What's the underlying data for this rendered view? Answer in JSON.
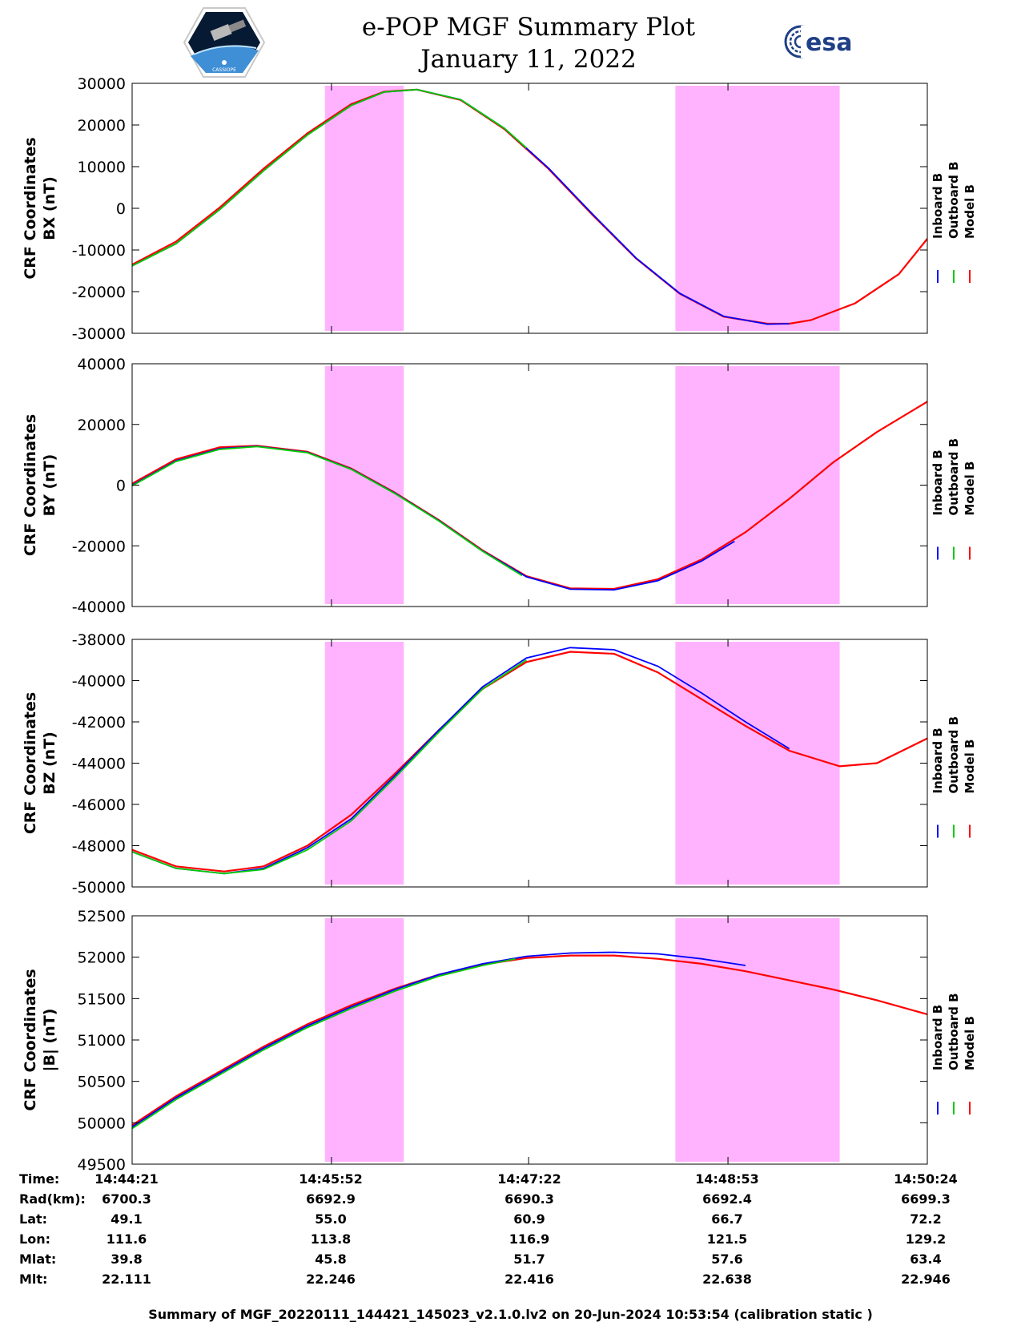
{
  "header": {
    "title": "e-POP MGF Summary Plot",
    "date": "January 11, 2022",
    "left_logo": "CASSIOPE",
    "right_logo": "esa"
  },
  "colors": {
    "inboard": "#0000ff",
    "outboard": "#00cc00",
    "model": "#ff0000",
    "highlight": "#ffb3ff"
  },
  "chart_data": [
    {
      "type": "line",
      "title": "BX",
      "ylabel_line1": "CRF Coordinates",
      "ylabel_line2": "BX (nT)",
      "ylim": [
        -30000,
        30000
      ],
      "yticks": [
        30000,
        20000,
        10000,
        0,
        -10000,
        -20000,
        -30000
      ],
      "xlim": [
        0,
        363
      ],
      "xticks": [
        0,
        91,
        181,
        272,
        363
      ],
      "highlight_spans": [
        [
          88,
          124
        ],
        [
          248,
          323
        ]
      ],
      "legend": [
        "Inboard B",
        "Outboard B",
        "Model B"
      ],
      "series": [
        {
          "name": "Model B",
          "x": [
            0,
            20,
            40,
            60,
            80,
            100,
            115,
            130,
            150,
            170,
            190,
            210,
            230,
            250,
            270,
            290,
            300,
            310,
            330,
            350,
            363
          ],
          "y": [
            -13500,
            -8000,
            200,
            9500,
            18000,
            25000,
            28000,
            28500,
            26000,
            19000,
            9500,
            -1500,
            -12000,
            -20500,
            -26000,
            -27700,
            -27700,
            -26800,
            -22800,
            -15800,
            -7300
          ]
        },
        {
          "name": "Inboard B",
          "x": [
            0,
            20,
            40,
            60,
            80,
            100,
            115,
            130,
            150,
            170,
            190,
            210,
            230,
            250,
            270,
            290,
            300
          ],
          "y": [
            -13800,
            -8500,
            -300,
            9000,
            17600,
            24700,
            27900,
            28500,
            26100,
            19200,
            9700,
            -1300,
            -11900,
            -20400,
            -25900,
            -27800,
            -27700
          ]
        },
        {
          "name": "Outboard B",
          "x": [
            0,
            20,
            40,
            60,
            80,
            100,
            115,
            130,
            150,
            170,
            180
          ],
          "y": [
            -13800,
            -8500,
            -300,
            9000,
            17600,
            24700,
            27900,
            28500,
            26100,
            19200,
            14500
          ]
        }
      ]
    },
    {
      "type": "line",
      "title": "BY",
      "ylabel_line1": "CRF Coordinates",
      "ylabel_line2": "BY (nT)",
      "ylim": [
        -40000,
        40000
      ],
      "yticks": [
        40000,
        20000,
        0,
        -20000,
        -40000
      ],
      "xlim": [
        0,
        363
      ],
      "xticks": [
        0,
        91,
        181,
        272,
        363
      ],
      "highlight_spans": [
        [
          88,
          124
        ],
        [
          248,
          323
        ]
      ],
      "legend": [
        "Inboard B",
        "Outboard B",
        "Model B"
      ],
      "series": [
        {
          "name": "Model B",
          "x": [
            0,
            20,
            40,
            57,
            80,
            100,
            120,
            140,
            160,
            180,
            200,
            220,
            240,
            260,
            280,
            300,
            320,
            340,
            363
          ],
          "y": [
            500,
            8500,
            12500,
            13000,
            11000,
            5500,
            -2500,
            -11500,
            -21500,
            -30000,
            -34000,
            -34200,
            -31000,
            -24500,
            -15500,
            -4500,
            7500,
            17500,
            27500
          ]
        },
        {
          "name": "Inboard B",
          "x": [
            0,
            20,
            40,
            57,
            80,
            100,
            120,
            140,
            160,
            180,
            200,
            220,
            240,
            260,
            275
          ],
          "y": [
            0,
            8000,
            12000,
            12800,
            10800,
            5300,
            -2700,
            -11700,
            -21700,
            -30200,
            -34300,
            -34500,
            -31500,
            -25000,
            -18500
          ]
        },
        {
          "name": "Outboard B",
          "x": [
            0,
            20,
            40,
            57,
            80,
            100,
            120,
            140,
            160,
            178
          ],
          "y": [
            -200,
            7800,
            11800,
            12700,
            10700,
            5200,
            -2800,
            -11800,
            -21800,
            -29800
          ]
        }
      ]
    },
    {
      "type": "line",
      "title": "BZ",
      "ylabel_line1": "CRF Coordinates",
      "ylabel_line2": "BZ (nT)",
      "ylim": [
        -50000,
        -38000
      ],
      "yticks": [
        -38000,
        -40000,
        -42000,
        -44000,
        -46000,
        -48000,
        -50000
      ],
      "xlim": [
        0,
        363
      ],
      "xticks": [
        0,
        91,
        181,
        272,
        363
      ],
      "highlight_spans": [
        [
          88,
          124
        ],
        [
          248,
          323
        ]
      ],
      "legend": [
        "Inboard B",
        "Outboard B",
        "Model B"
      ],
      "series": [
        {
          "name": "Model B",
          "x": [
            0,
            20,
            42,
            60,
            80,
            100,
            120,
            140,
            160,
            180,
            200,
            220,
            240,
            260,
            280,
            300,
            323,
            340,
            363
          ],
          "y": [
            -48200,
            -49000,
            -49250,
            -49000,
            -48000,
            -46500,
            -44500,
            -42400,
            -40400,
            -39100,
            -38600,
            -38700,
            -39600,
            -40900,
            -42200,
            -43400,
            -44150,
            -44000,
            -42800
          ]
        },
        {
          "name": "Inboard B",
          "x": [
            0,
            20,
            42,
            60,
            80,
            100,
            120,
            140,
            160,
            180,
            200,
            220,
            240,
            260,
            280,
            300
          ],
          "y": [
            -48300,
            -49100,
            -49350,
            -49100,
            -48100,
            -46700,
            -44600,
            -42400,
            -40300,
            -38900,
            -38400,
            -38500,
            -39300,
            -40600,
            -42000,
            -43300
          ]
        },
        {
          "name": "Outboard B",
          "x": [
            0,
            20,
            42,
            60,
            80,
            100,
            120,
            140,
            160,
            180
          ],
          "y": [
            -48300,
            -49100,
            -49350,
            -49150,
            -48200,
            -46800,
            -44700,
            -42500,
            -40400,
            -39000
          ]
        }
      ]
    },
    {
      "type": "line",
      "title": "|B|",
      "ylabel_line1": "CRF Coordinates",
      "ylabel_line2": "|B| (nT)",
      "ylim": [
        49500,
        52500
      ],
      "yticks": [
        52500,
        52000,
        51500,
        51000,
        50500,
        50000,
        49500
      ],
      "xlim": [
        0,
        363
      ],
      "xticks": [
        0,
        91,
        181,
        272,
        363
      ],
      "highlight_spans": [
        [
          88,
          124
        ],
        [
          248,
          323
        ]
      ],
      "legend": [
        "Inboard B",
        "Outboard B",
        "Model B"
      ],
      "series": [
        {
          "name": "Model B",
          "x": [
            0,
            20,
            40,
            60,
            80,
            100,
            120,
            140,
            160,
            180,
            200,
            220,
            240,
            260,
            280,
            300,
            320,
            340,
            363
          ],
          "y": [
            49970,
            50320,
            50620,
            50920,
            51190,
            51420,
            51620,
            51790,
            51910,
            51990,
            52020,
            52020,
            51980,
            51920,
            51830,
            51720,
            51610,
            51480,
            51310
          ]
        },
        {
          "name": "Inboard B",
          "x": [
            0,
            20,
            40,
            60,
            80,
            100,
            120,
            140,
            160,
            180,
            200,
            220,
            240,
            260,
            280
          ],
          "y": [
            49950,
            50300,
            50600,
            50900,
            51170,
            51400,
            51610,
            51790,
            51920,
            52010,
            52050,
            52060,
            52040,
            51980,
            51900
          ]
        },
        {
          "name": "Outboard B",
          "x": [
            0,
            20,
            40,
            60,
            80,
            100,
            120,
            140,
            160,
            175
          ],
          "y": [
            49930,
            50280,
            50580,
            50880,
            51150,
            51380,
            51590,
            51770,
            51900,
            51980
          ]
        }
      ]
    }
  ],
  "table": {
    "rows": [
      {
        "label": "Time:",
        "values": [
          "14:44:21",
          "14:45:52",
          "14:47:22",
          "14:48:53",
          "14:50:24"
        ]
      },
      {
        "label": "Rad(km):",
        "values": [
          "6700.3",
          "6692.9",
          "6690.3",
          "6692.4",
          "6699.3"
        ]
      },
      {
        "label": "Lat:",
        "values": [
          "49.1",
          "55.0",
          "60.9",
          "66.7",
          "72.2"
        ]
      },
      {
        "label": "Lon:",
        "values": [
          "111.6",
          "113.8",
          "116.9",
          "121.5",
          "129.2"
        ]
      },
      {
        "label": "Mlat:",
        "values": [
          "39.8",
          "45.8",
          "51.7",
          "57.6",
          "63.4"
        ]
      },
      {
        "label": "Mlt:",
        "values": [
          "22.111",
          "22.246",
          "22.416",
          "22.638",
          "22.946"
        ]
      }
    ]
  },
  "footer": {
    "caption": "Summary of MGF_20220111_144421_145023_v2.1.0.lv2 on 20-Jun-2024 10:53:54 (calibration static )"
  }
}
